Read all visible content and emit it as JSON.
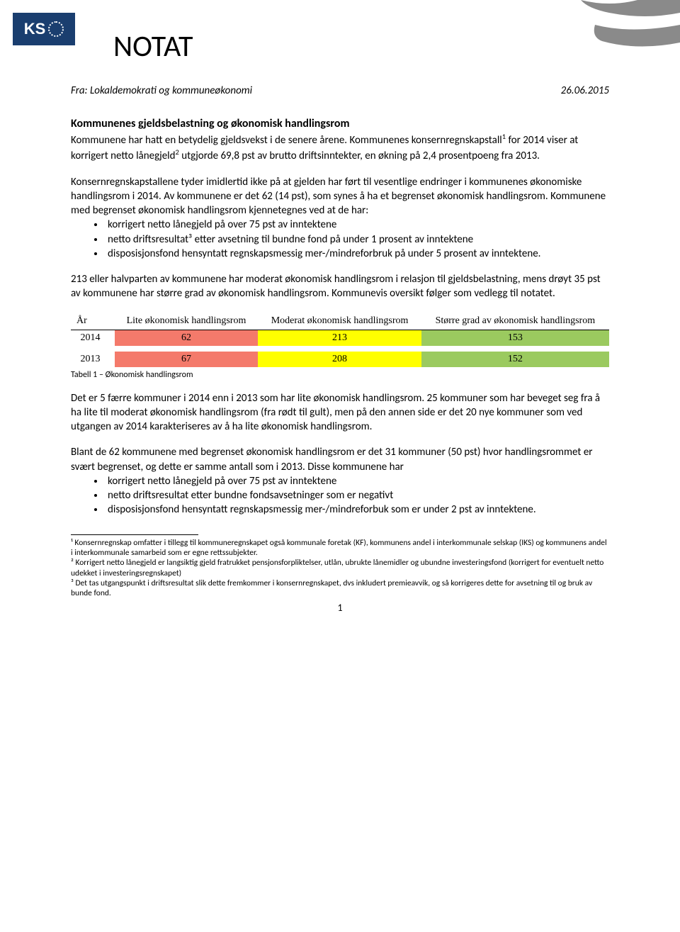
{
  "header": {
    "logo_text": "KS",
    "doc_title": "NOTAT",
    "from_label": "Fra: Lokaldemokrati og kommuneøkonomi",
    "date": "26.06.2015"
  },
  "section1": {
    "heading": "Kommunenes gjeldsbelastning og økonomisk handlingsrom",
    "p1_a": "Kommunene har hatt en betydelig gjeldsvekst i de senere årene. Kommunenes konsernregnskapstall",
    "p1_b": " for 2014 viser at korrigert netto lånegjeld",
    "p1_c": " utgjorde 69,8 pst av brutto driftsinntekter, en økning på 2,4 prosentpoeng fra 2013.",
    "p2_intro": "Konsernregnskapstallene tyder imidlertid ikke på at gjelden har ført til vesentlige endringer i kommunenes økonomiske handlingsrom i 2014. Av kommunene er det 62 (14 pst), som synes å ha et begrenset økonomisk handlingsrom. Kommunene med begrenset økonomisk handlingsrom kjennetegnes ved at de har:",
    "bullets": [
      "korrigert netto lånegjeld på over 75 pst av inntektene",
      "netto driftsresultat³ etter avsetning til bundne fond på under 1 prosent av inntektene",
      "disposisjonsfond hensyntatt regnskapsmessig mer-/mindreforbruk på under 5 prosent av inntektene."
    ],
    "p3": "213 eller halvparten av kommunene har moderat økonomisk handlingsrom i relasjon til gjeldsbelastning, mens drøyt 35 pst av kommunene har større grad av økonomisk handlingsrom. Kommunevis oversikt følger som vedlegg til notatet."
  },
  "table": {
    "columns": [
      "År",
      "Lite økonomisk handlingsrom",
      "Moderat økonomisk handlingsrom",
      "Større grad av økonomisk handlingsrom"
    ],
    "rows": [
      {
        "year": "2014",
        "cells": [
          "62",
          "213",
          "153"
        ]
      },
      {
        "year": "2013",
        "cells": [
          "67",
          "208",
          "152"
        ]
      }
    ],
    "cell_colors": {
      "lite": "#f47a6b",
      "moderat": "#ffff00",
      "storre": "#9bca5f"
    },
    "caption": "Tabell 1 – Økonomisk handlingsrom"
  },
  "section2": {
    "p4": "Det er 5 færre kommuner i 2014 enn i 2013 som har lite økonomisk handlingsrom. 25 kommuner som har beveget seg fra å ha lite til moderat økonomisk handlingsrom (fra rødt til gult), men på den annen side er det 20 nye kommuner som ved utgangen av 2014 karakteriseres av å ha lite økonomisk handlingsrom.",
    "p5_intro": "Blant de 62 kommunene med begrenset økonomisk handlingsrom er det 31 kommuner (50 pst) hvor handlingsrommet er svært begrenset, og dette er samme antall som i 2013. Disse kommunene har",
    "bullets": [
      "korrigert netto lånegjeld på over 75 pst av inntektene",
      "netto driftsresultat etter bundne fondsavsetninger som er negativt",
      "disposisjonsfond hensyntatt regnskapsmessig mer-/mindreforbuk som er under 2 pst av inntektene."
    ]
  },
  "footnotes": {
    "f1": "¹ Konsernregnskap omfatter i tillegg til kommuneregnskapet også kommunale foretak (KF), kommunens andel i interkommunale selskap (IKS) og kommunens andel i interkommunale samarbeid som er egne rettssubjekter.",
    "f2": "² Korrigert netto lånegjeld er langsiktig gjeld fratrukket pensjonsforpliktelser, utlån, ubrukte lånemidler og ubundne investeringsfond (korrigert for eventuelt netto udekket i investeringsregnskapet)",
    "f3": "³ Det tas utgangspunkt i driftsresultat slik dette fremkommer i konsernregnskapet, dvs inkludert premieavvik, og så korrigeres dette for avsetning til og bruk av bunde fond."
  },
  "page_number": "1",
  "colors": {
    "logo_bg": "#1a3e6f",
    "corner_grey": "#8a8a8a"
  }
}
